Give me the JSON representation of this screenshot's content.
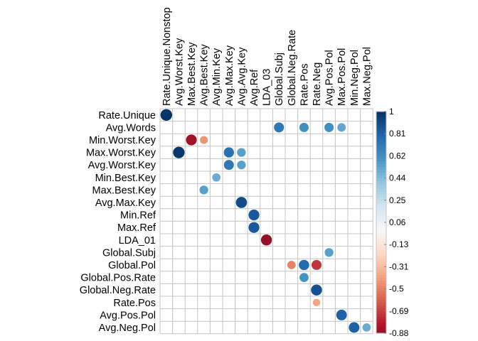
{
  "chart_data": {
    "type": "heatmap",
    "title": "",
    "columns": [
      "Rate.Unique.Nonstop",
      "Avg.Worst.Key",
      "Max.Best.Key",
      "Avg.Best.Key",
      "Avg.Min.Key",
      "Avg.Max.Key",
      "Avg.Avg.Key",
      "Avg.Ref",
      "LDA_03",
      "Global.Subj",
      "Global.Neg.Rate",
      "Rate.Pos",
      "Rate.Neg",
      "Avg.Pos.Pol",
      "Max.Pos.Pol",
      "Min.Neg.Pol",
      "Max.Neg.Pol"
    ],
    "rows": [
      "Rate.Unique",
      "Avg.Words",
      "Min.Worst.Key",
      "Max.Worst.Key",
      "Avg.Worst.Key",
      "Min.Best.Key",
      "Max.Best.Key",
      "Avg.Max.Key",
      "Min.Ref",
      "Max.Ref",
      "LDA_01",
      "Global.Subj",
      "Global.Pol",
      "Global.Pos.Rate",
      "Global.Neg.Rate",
      "Rate.Pos",
      "Avg.Pos.Pol",
      "Avg.Neg.Pol"
    ],
    "cells": [
      {
        "row": 0,
        "col": 0,
        "value": 0.98
      },
      {
        "row": 1,
        "col": 9,
        "value": 0.72
      },
      {
        "row": 1,
        "col": 11,
        "value": 0.62
      },
      {
        "row": 1,
        "col": 13,
        "value": 0.62
      },
      {
        "row": 1,
        "col": 14,
        "value": 0.52
      },
      {
        "row": 2,
        "col": 2,
        "value": -0.85
      },
      {
        "row": 2,
        "col": 3,
        "value": -0.45
      },
      {
        "row": 3,
        "col": 1,
        "value": 0.97
      },
      {
        "row": 3,
        "col": 5,
        "value": 0.75
      },
      {
        "row": 3,
        "col": 6,
        "value": 0.55
      },
      {
        "row": 4,
        "col": 5,
        "value": 0.72
      },
      {
        "row": 4,
        "col": 6,
        "value": 0.55
      },
      {
        "row": 5,
        "col": 4,
        "value": 0.5
      },
      {
        "row": 6,
        "col": 3,
        "value": 0.55
      },
      {
        "row": 7,
        "col": 6,
        "value": 0.9
      },
      {
        "row": 8,
        "col": 7,
        "value": 0.85
      },
      {
        "row": 9,
        "col": 7,
        "value": 0.85
      },
      {
        "row": 10,
        "col": 8,
        "value": -0.88
      },
      {
        "row": 11,
        "col": 13,
        "value": 0.55
      },
      {
        "row": 12,
        "col": 10,
        "value": -0.5
      },
      {
        "row": 12,
        "col": 11,
        "value": 0.78
      },
      {
        "row": 12,
        "col": 12,
        "value": -0.72
      },
      {
        "row": 13,
        "col": 11,
        "value": 0.6
      },
      {
        "row": 14,
        "col": 12,
        "value": 0.88
      },
      {
        "row": 15,
        "col": 12,
        "value": -0.4
      },
      {
        "row": 16,
        "col": 14,
        "value": 0.82
      },
      {
        "row": 17,
        "col": 15,
        "value": 0.82
      },
      {
        "row": 17,
        "col": 16,
        "value": 0.5
      }
    ],
    "colorbar": {
      "min": -0.88,
      "max": 1,
      "ticks": [
        "1",
        "0.81",
        "0.62",
        "0.44",
        "0.25",
        "0.06",
        "-0.13",
        "-0.31",
        "-0.5",
        "-0.69",
        "-0.88"
      ],
      "low_color": "#67001f",
      "mid_color": "#f7f7f7",
      "high_color": "#053061"
    },
    "grid": true,
    "legend": "right"
  }
}
